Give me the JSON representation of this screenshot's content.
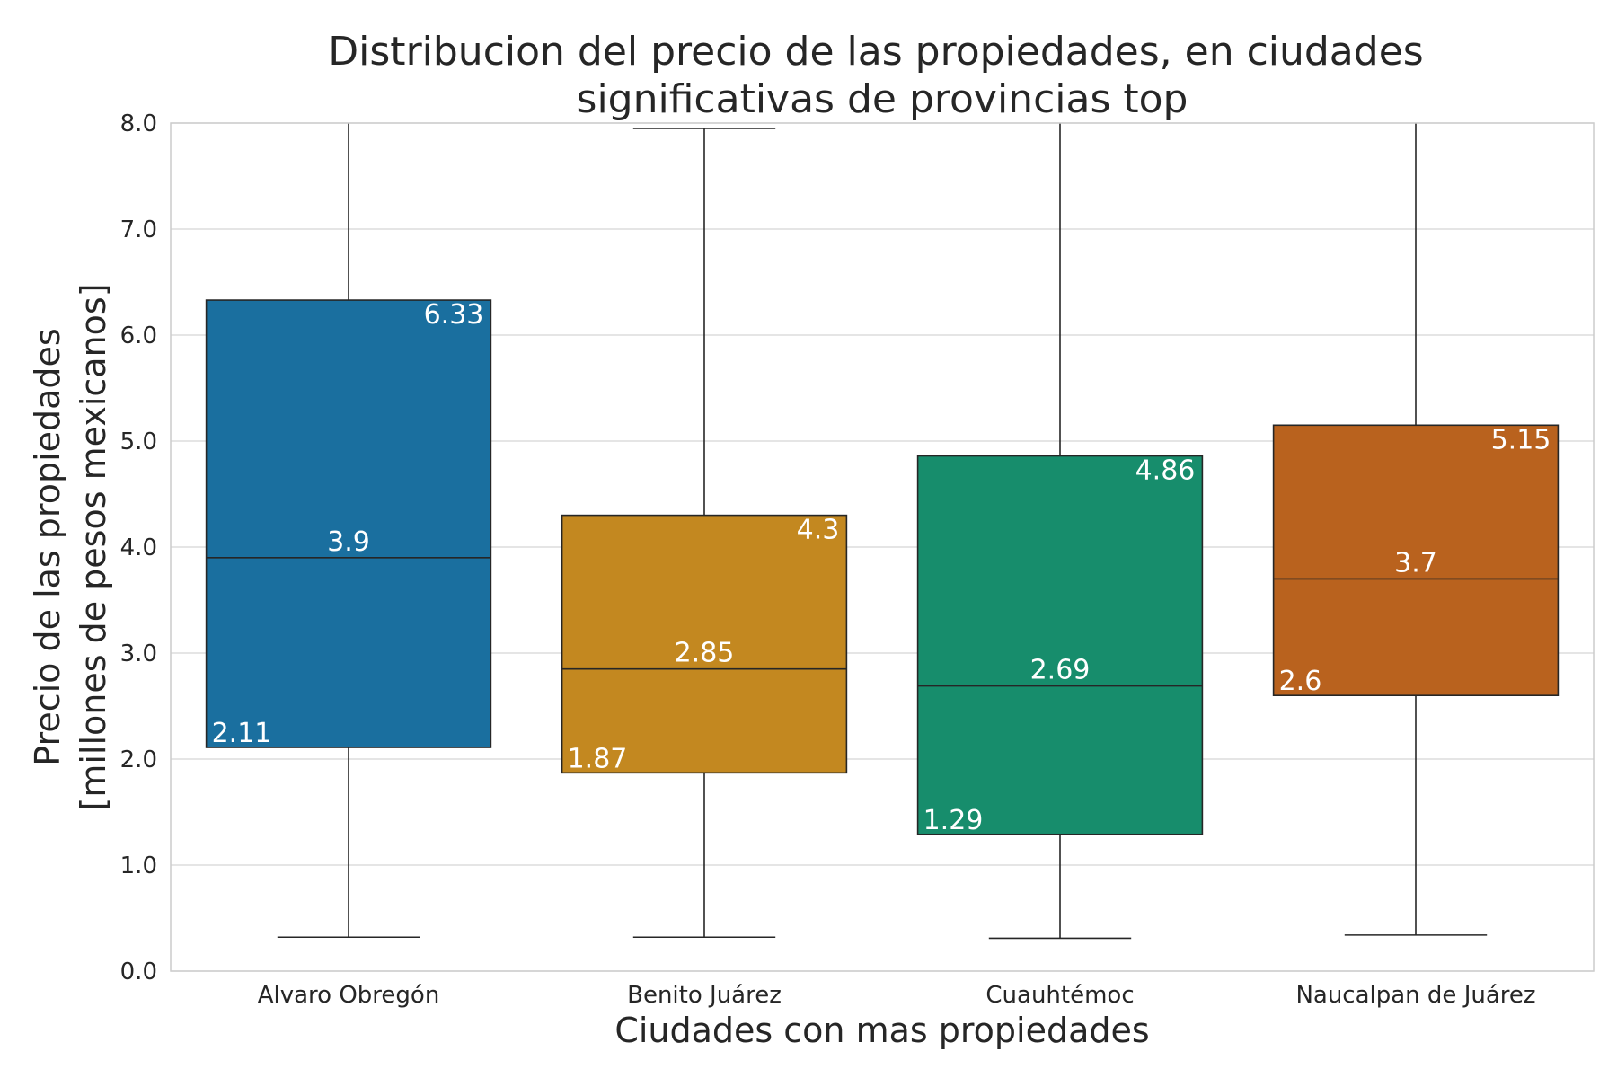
{
  "chart_data": {
    "type": "box",
    "title_lines": [
      "Distribucion del precio de las propiedades, en ciudades",
      "significativas de provincias top"
    ],
    "xlabel": "Ciudades con mas propiedades",
    "ylabel_lines": [
      "Precio de las propiedades",
      "[millones de pesos mexicanos]"
    ],
    "ylim": [
      0,
      8
    ],
    "yticks": [
      "0.0",
      "1.0",
      "2.0",
      "3.0",
      "4.0",
      "5.0",
      "6.0",
      "7.0",
      "8.0"
    ],
    "grid": true,
    "categories": [
      "Alvaro Obregón",
      "Benito Juárez",
      "Cuauhtémoc",
      "Naucalpan de Juárez"
    ],
    "boxes": [
      {
        "q1": 2.11,
        "median": 3.9,
        "q3": 6.33,
        "whisker_low": 0.32,
        "whisker_high": 8.0,
        "labels": {
          "q1": "2.11",
          "median": "3.9",
          "q3": "6.33"
        },
        "color": "#1a6f9f"
      },
      {
        "q1": 1.87,
        "median": 2.85,
        "q3": 4.3,
        "whisker_low": 0.32,
        "whisker_high": 7.95,
        "labels": {
          "q1": "1.87",
          "median": "2.85",
          "q3": "4.3"
        },
        "color": "#c38820"
      },
      {
        "q1": 1.29,
        "median": 2.69,
        "q3": 4.86,
        "whisker_low": 0.31,
        "whisker_high": 8.0,
        "labels": {
          "q1": "1.29",
          "median": "2.69",
          "q3": "4.86"
        },
        "color": "#178d6c"
      },
      {
        "q1": 2.6,
        "median": 3.7,
        "q3": 5.15,
        "whisker_low": 0.34,
        "whisker_high": 8.0,
        "labels": {
          "q1": "2.6",
          "median": "3.7",
          "q3": "5.15"
        },
        "color": "#b9621e"
      }
    ]
  }
}
